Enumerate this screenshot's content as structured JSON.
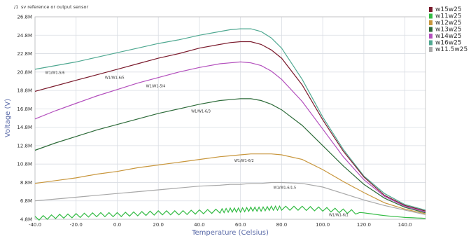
{
  "chart_data": {
    "type": "line",
    "title": "",
    "caption_prefix": "/1",
    "caption": "sv reference or output sensor",
    "xlabel": "Temperature (Celsius)",
    "ylabel": "Voltage (V)",
    "xlim": [
      -40,
      150
    ],
    "ylim": [
      4.8,
      26.8
    ],
    "x_ticks": [
      -40,
      -20,
      0,
      20,
      40,
      60,
      80,
      100,
      120,
      140
    ],
    "x_tick_labels": [
      "-40.0",
      "-20.0",
      "0.0",
      "20.0",
      "40.0",
      "60.0",
      "80.0",
      "100.0",
      "120.0",
      "140.0"
    ],
    "y_ticks": [
      4.8,
      6.8,
      8.8,
      10.8,
      12.8,
      14.8,
      16.8,
      18.8,
      20.8,
      22.8,
      24.8,
      26.8
    ],
    "y_tick_labels": [
      "4.8M",
      "6.8M",
      "8.8M",
      "10.8M",
      "12.8M",
      "14.8M",
      "16.8M",
      "18.8M",
      "20.8M",
      "22.8M",
      "24.8M",
      "26.8M"
    ],
    "grid": true,
    "legend_position": "right",
    "x": [
      -40,
      -30,
      -20,
      -10,
      0,
      10,
      20,
      30,
      40,
      50,
      55,
      60,
      65,
      70,
      75,
      80,
      90,
      100,
      110,
      120,
      130,
      140,
      150
    ],
    "series": [
      {
        "name": "w16w25",
        "color": "#4fa891",
        "label": "W1/W1-5/6",
        "label_x": -35,
        "values": [
          21.1,
          21.5,
          21.9,
          22.4,
          22.9,
          23.4,
          23.9,
          24.3,
          24.8,
          25.2,
          25.4,
          25.5,
          25.5,
          25.2,
          24.5,
          23.4,
          20.0,
          15.9,
          12.4,
          9.5,
          7.6,
          6.4,
          5.8
        ]
      },
      {
        "name": "w15w25",
        "color": "#7a1a2c",
        "label": "W1/W1-6/5",
        "label_x": -6,
        "values": [
          18.7,
          19.3,
          19.9,
          20.5,
          21.1,
          21.7,
          22.3,
          22.8,
          23.4,
          23.8,
          24.0,
          24.1,
          24.1,
          23.8,
          23.2,
          22.3,
          19.4,
          15.6,
          12.2,
          9.4,
          7.4,
          6.3,
          5.7
        ]
      },
      {
        "name": "w14w25",
        "color": "#b34fbd",
        "label": "W1/W1-5/4",
        "label_x": 14,
        "values": [
          15.7,
          16.6,
          17.4,
          18.2,
          18.9,
          19.6,
          20.2,
          20.8,
          21.3,
          21.7,
          21.8,
          21.9,
          21.8,
          21.5,
          20.9,
          20.0,
          17.6,
          14.6,
          11.6,
          9.1,
          7.3,
          6.2,
          5.6
        ]
      },
      {
        "name": "w13w25",
        "color": "#2d6b39",
        "label": "W1/W1-6/3",
        "label_x": 36,
        "values": [
          12.3,
          13.1,
          13.8,
          14.5,
          15.1,
          15.7,
          16.3,
          16.8,
          17.3,
          17.7,
          17.8,
          17.9,
          17.9,
          17.7,
          17.3,
          16.7,
          15.0,
          12.8,
          10.6,
          8.6,
          7.1,
          6.1,
          5.5
        ]
      },
      {
        "name": "w12w25",
        "color": "#c8963c",
        "label": "W1/W1-6/2",
        "label_x": 57,
        "values": [
          8.7,
          9.0,
          9.3,
          9.7,
          10.0,
          10.4,
          10.7,
          11.0,
          11.3,
          11.6,
          11.7,
          11.8,
          11.9,
          11.9,
          11.9,
          11.8,
          11.3,
          10.2,
          8.9,
          7.7,
          6.6,
          5.9,
          5.4
        ]
      },
      {
        "name": "w11.5w25",
        "color": "#a8a8a8",
        "label": "W1/W1-6/1.5",
        "label_x": 76,
        "values": [
          6.8,
          7.0,
          7.2,
          7.4,
          7.6,
          7.8,
          8.0,
          8.2,
          8.4,
          8.5,
          8.6,
          8.6,
          8.7,
          8.7,
          8.8,
          8.8,
          8.7,
          8.3,
          7.6,
          6.9,
          6.3,
          5.8,
          5.3
        ]
      },
      {
        "name": "w11w25",
        "color": "#33bb44",
        "label": "W1/W1-6/1",
        "label_x": 103,
        "values": [
          4.9,
          5.1,
          5.2,
          5.3,
          5.3,
          5.4,
          5.5,
          5.5,
          5.6,
          5.7,
          5.8,
          5.8,
          5.9,
          5.9,
          6.0,
          6.0,
          6.0,
          5.9,
          5.7,
          5.5,
          5.2,
          5.0,
          4.9
        ]
      }
    ],
    "legend_order": [
      "w15w25",
      "w11w25",
      "w12w25",
      "w13w25",
      "w14w25",
      "w16w25",
      "w11.5w25"
    ]
  }
}
